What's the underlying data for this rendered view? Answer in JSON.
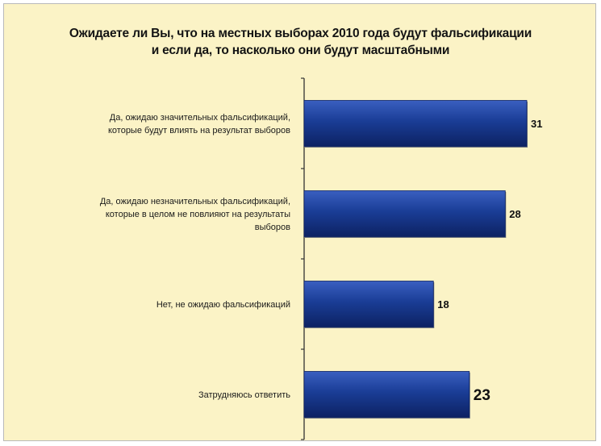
{
  "chart_data": {
    "type": "bar",
    "orientation": "horizontal",
    "title": "Ожидаете ли Вы, что на местных выборах 2010 года будут фальсификации\nи если да, то насколько они будут масштабными",
    "categories": [
      "Да, ожидаю значительных фальсификаций, которые будут влиять на результат выборов",
      "Да, ожидаю незначительных фальсификаций, которые в целом не повлияют на результаты выборов",
      "Нет, не ожидаю фальсификаций",
      "Затрудняюсь ответить"
    ],
    "category_lines": [
      [
        "Да, ожидаю значительных фальсификаций,",
        "которые будут влиять на результат выборов"
      ],
      [
        "Да, ожидаю незначительных фальсификаций,",
        "которые в целом не повлияют на результаты",
        "выборов"
      ],
      [
        "Нет, не ожидаю фальсификаций"
      ],
      [
        "Затрудняюсь ответить"
      ]
    ],
    "values": [
      31,
      28,
      18,
      23
    ],
    "value_labels": [
      "31",
      "28",
      "18",
      "23"
    ],
    "xlim": [
      0,
      31
    ],
    "grid": false,
    "legend": "none",
    "colors": {
      "bar": "#1a3d96",
      "bar_light": "#3a5fc0",
      "bar_dark": "#0d2263",
      "background": "#fbf3c6",
      "axis": "#333333"
    }
  }
}
